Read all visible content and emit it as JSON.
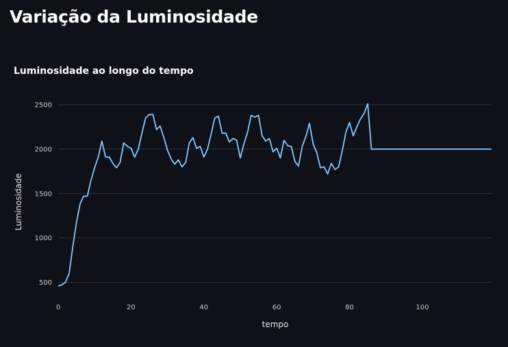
{
  "page": {
    "title": "Variação da Luminosidade"
  },
  "colors": {
    "background": "#0e1117",
    "line": "#83c9ff",
    "grid": "#31333a"
  },
  "chart_data": {
    "type": "line",
    "title": "Luminosidade ao longo do tempo",
    "xlabel": "tempo",
    "ylabel": "Luminosidade",
    "xlim": [
      0,
      119
    ],
    "ylim": [
      350,
      2600
    ],
    "xticks": [
      0,
      20,
      40,
      60,
      80,
      100
    ],
    "yticks": [
      500,
      1000,
      1500,
      2000,
      2500
    ],
    "grid": true,
    "series": [
      {
        "x": [
          0,
          1,
          2,
          3,
          4,
          5,
          6,
          7,
          8,
          9,
          10,
          11,
          12,
          13,
          14,
          15,
          16,
          17,
          18,
          19,
          20,
          21,
          22,
          23,
          24,
          25,
          26,
          27,
          28,
          29,
          30,
          31,
          32,
          33,
          34,
          35,
          36,
          37,
          38,
          39,
          40,
          41,
          42,
          43,
          44,
          45,
          46,
          47,
          48,
          49,
          50,
          51,
          52,
          53,
          54,
          55,
          56,
          57,
          58,
          59,
          60,
          61,
          62,
          63,
          64,
          65,
          66,
          67,
          68,
          69,
          70,
          71,
          72,
          73,
          74,
          75,
          76,
          77,
          78,
          79,
          80,
          81,
          82,
          83,
          84,
          85,
          86,
          119
        ],
        "y": [
          460,
          470,
          500,
          600,
          900,
          1170,
          1380,
          1470,
          1470,
          1650,
          1790,
          1910,
          2090,
          1910,
          1910,
          1840,
          1790,
          1850,
          2070,
          2030,
          2010,
          1910,
          2000,
          2180,
          2350,
          2390,
          2390,
          2220,
          2260,
          2130,
          1990,
          1890,
          1830,
          1880,
          1800,
          1850,
          2070,
          2130,
          2010,
          2030,
          1910,
          2000,
          2170,
          2350,
          2370,
          2180,
          2180,
          2080,
          2120,
          2100,
          1900,
          2060,
          2190,
          2380,
          2360,
          2380,
          2150,
          2090,
          2120,
          1970,
          2010,
          1900,
          2100,
          2040,
          2030,
          1860,
          1810,
          2030,
          2140,
          2290,
          2060,
          1960,
          1790,
          1800,
          1720,
          1840,
          1770,
          1800,
          1980,
          2190,
          2300,
          2150,
          2250,
          2340,
          2400,
          2510,
          2000,
          2000
        ]
      }
    ]
  }
}
